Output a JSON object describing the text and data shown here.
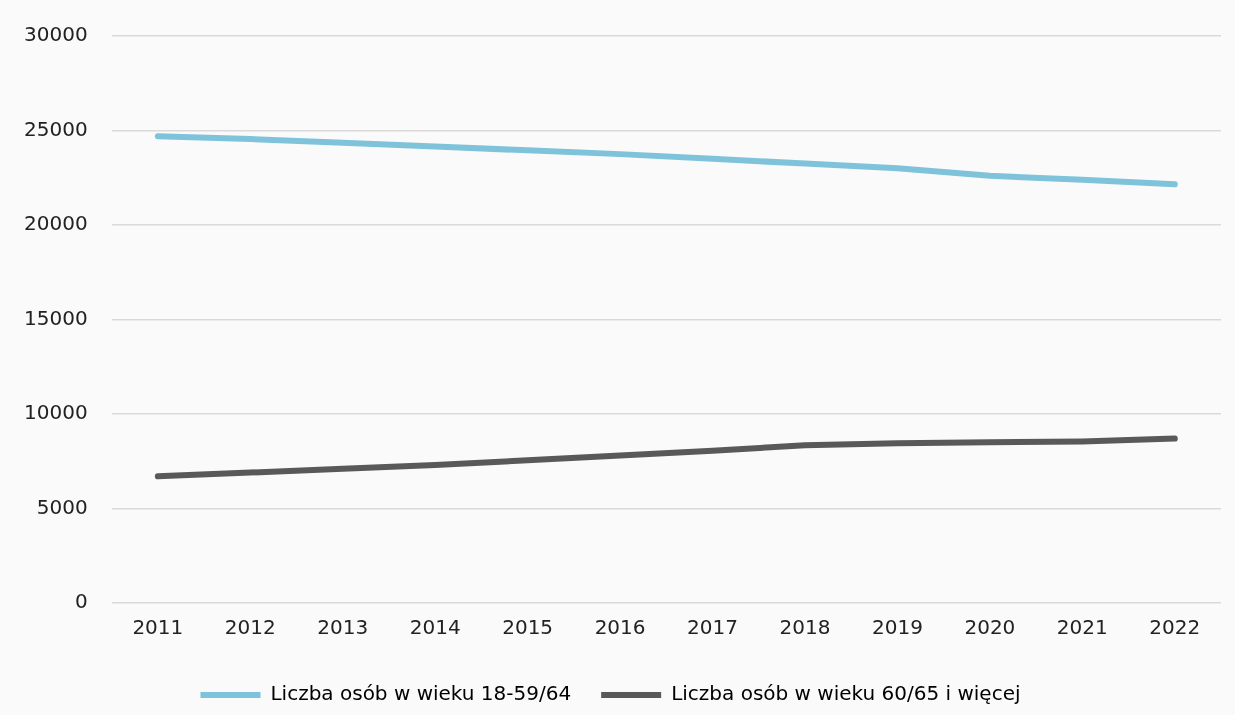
{
  "chart_data": {
    "type": "line",
    "categories": [
      "2011",
      "2012",
      "2013",
      "2014",
      "2015",
      "2016",
      "2017",
      "2018",
      "2019",
      "2020",
      "2021",
      "2022"
    ],
    "series": [
      {
        "name": "Liczba osób w wieku 18-59/64",
        "color": "#7fc3da",
        "values": [
          24700,
          24550,
          24350,
          24150,
          23950,
          23750,
          23500,
          23250,
          23000,
          22600,
          22400,
          22150
        ]
      },
      {
        "name": "Liczba osób w wieku 60/65 i więcej",
        "color": "#595959",
        "values": [
          6700,
          6900,
          7100,
          7300,
          7550,
          7800,
          8050,
          8350,
          8450,
          8500,
          8550,
          8700
        ]
      }
    ],
    "ylim": [
      0,
      30000
    ],
    "yticks": [
      0,
      5000,
      10000,
      15000,
      20000,
      25000,
      30000
    ],
    "grid": "y",
    "legend": "bottom",
    "marker": "none",
    "line_style": "solid"
  }
}
